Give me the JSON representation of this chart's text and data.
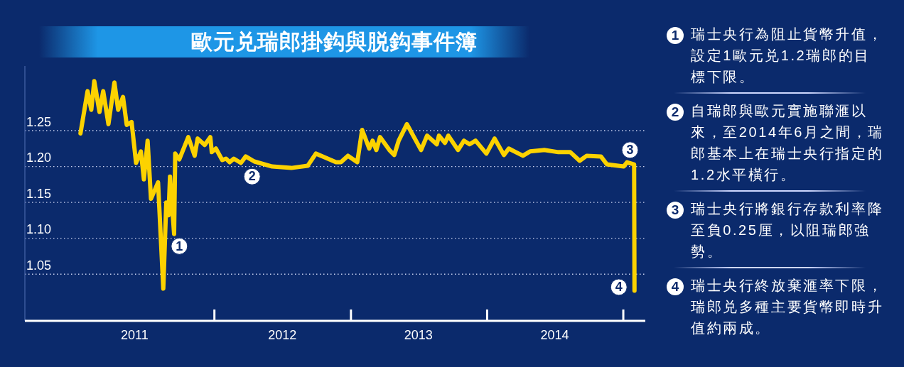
{
  "chart_data": {
    "type": "line",
    "title": "歐元兑瑞郎掛鈎與脱鈎事件簿",
    "x": [
      "2011-01-07",
      "2011-01-26",
      "2011-02-05",
      "2011-02-13",
      "2011-02-27",
      "2011-03-09",
      "2011-03-23",
      "2011-04-08",
      "2011-04-18",
      "2011-05-01",
      "2011-05-11",
      "2011-05-24",
      "2011-06-05",
      "2011-06-18",
      "2011-06-26",
      "2011-07-06",
      "2011-07-15",
      "2011-08-03",
      "2011-08-17",
      "2011-08-25",
      "2011-08-31",
      "2011-09-04",
      "2011-09-15",
      "2011-09-18",
      "2011-09-29",
      "2011-10-23",
      "2011-11-09",
      "2011-11-17",
      "2011-12-06",
      "2011-12-21",
      "2011-12-25",
      "2012-01-05",
      "2012-01-22",
      "2012-02-01",
      "2012-02-11",
      "2012-02-22",
      "2012-03-12",
      "2012-03-25",
      "2012-04-17",
      "2012-06-04",
      "2012-07-25",
      "2012-09-07",
      "2012-09-29",
      "2012-10-22",
      "2012-11-22",
      "2012-12-05",
      "2012-12-24",
      "2013-01-18",
      "2013-01-31",
      "2013-02-19",
      "2013-02-28",
      "2013-03-10",
      "2013-03-20",
      "2013-04-14",
      "2013-04-27",
      "2013-05-09",
      "2013-05-31",
      "2013-07-08",
      "2013-07-24",
      "2013-08-19",
      "2013-08-25",
      "2013-09-10",
      "2013-09-19",
      "2013-10-15",
      "2013-10-31",
      "2013-11-15",
      "2013-12-01",
      "2013-12-30",
      "2014-01-21",
      "2014-02-15",
      "2014-02-28",
      "2014-03-19",
      "2014-04-07",
      "2014-04-26",
      "2014-06-03",
      "2014-07-11",
      "2014-08-12",
      "2014-09-06",
      "2014-09-25",
      "2014-11-02",
      "2014-11-18",
      "2015-01-02",
      "2015-01-11",
      "2015-01-30",
      "2015-01-31"
    ],
    "series": [
      {
        "color": "#fcd200",
        "values": [
          1.246,
          1.305,
          1.279,
          1.319,
          1.276,
          1.305,
          1.259,
          1.317,
          1.279,
          1.297,
          1.258,
          1.262,
          1.205,
          1.221,
          1.182,
          1.236,
          1.155,
          1.178,
          1.03,
          1.15,
          1.132,
          1.186,
          1.106,
          1.218,
          1.21,
          1.241,
          1.215,
          1.239,
          1.23,
          1.241,
          1.22,
          1.225,
          1.209,
          1.211,
          1.206,
          1.211,
          1.205,
          1.214,
          1.207,
          1.2,
          1.198,
          1.201,
          1.218,
          1.213,
          1.206,
          1.206,
          1.215,
          1.206,
          1.251,
          1.225,
          1.236,
          1.223,
          1.241,
          1.223,
          1.216,
          1.236,
          1.259,
          1.223,
          1.243,
          1.231,
          1.243,
          1.233,
          1.243,
          1.223,
          1.236,
          1.231,
          1.236,
          1.218,
          1.239,
          1.216,
          1.225,
          1.22,
          1.215,
          1.221,
          1.223,
          1.22,
          1.22,
          1.208,
          1.215,
          1.214,
          1.203,
          1.2,
          1.206,
          1.203,
          1.027
        ]
      }
    ],
    "xlim": [
      "2010-08-11",
      "2015-03-01"
    ],
    "ylim": [
      0.985,
      1.34
    ],
    "xticks": [
      {
        "value": "2011-06-01",
        "label": "2011"
      },
      {
        "value": "2012-01-01",
        "label": null
      },
      {
        "value": "2012-07-01",
        "label": "2012"
      },
      {
        "value": "2013-01-01",
        "label": null
      },
      {
        "value": "2013-07-01",
        "label": "2013"
      },
      {
        "value": "2014-01-01",
        "label": null
      },
      {
        "value": "2014-07-01",
        "label": "2014"
      },
      {
        "value": "2015-01-01",
        "label": null
      }
    ],
    "yticks": [
      1.05,
      {
        "value": 1.1,
        "label": "1.10"
      },
      1.15,
      {
        "value": 1.2,
        "label": "1.20"
      },
      1.25
    ],
    "grid": "y",
    "line_style": "solid",
    "annotations": [
      {
        "text": "1",
        "x": "2011-09-29",
        "y": 1.089
      },
      {
        "text": "2",
        "x": "2012-04-11",
        "y": 1.186
      },
      {
        "text": "3",
        "x": "2015-01-19",
        "y": 1.223
      },
      {
        "text": "4",
        "x": "2014-12-20",
        "y": 1.032
      },
      "瑞士央行為阻止貨幣升值，設定1歐元兑1.2瑞郎的目標下限。",
      "自瑞郎與歐元實施聯滙以來，至2014年6月之間，瑞郎基本上在瑞士央行指定的1.2水平橫行。",
      "瑞士央行將銀行存款利率降至負0.25厘，以阻瑞郎強勢。",
      "瑞士央行終放棄滙率下限，瑞郎兑多種主要貨幣即時升值約兩成。"
    ]
  }
}
